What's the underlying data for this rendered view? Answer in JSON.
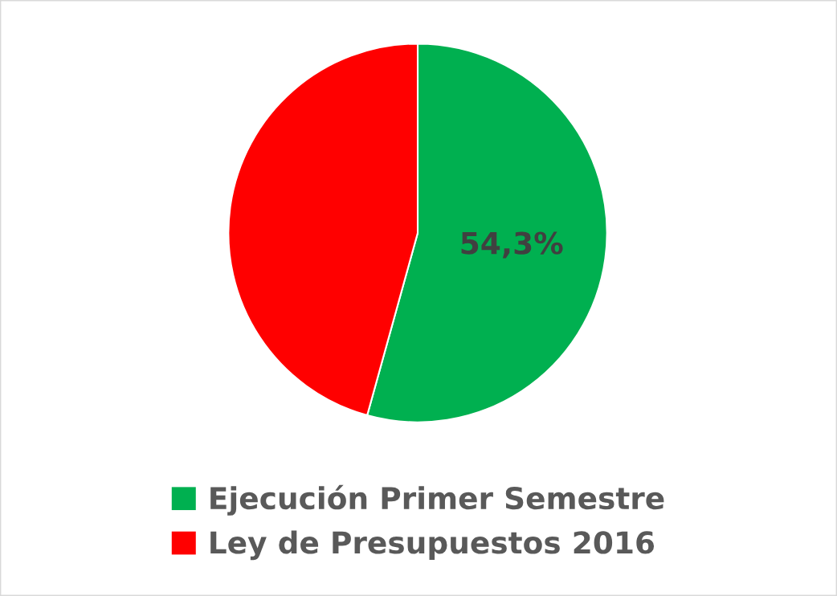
{
  "chart_data": {
    "type": "pie",
    "categories": [
      "Ejecución Primer Semestre",
      "Ley de Presupuestos 2016"
    ],
    "values": [
      54.3,
      45.7
    ],
    "colors": [
      "#00b050",
      "#ff0000"
    ],
    "value_labels": [
      "54,3%",
      null
    ],
    "legend": "bottom"
  }
}
